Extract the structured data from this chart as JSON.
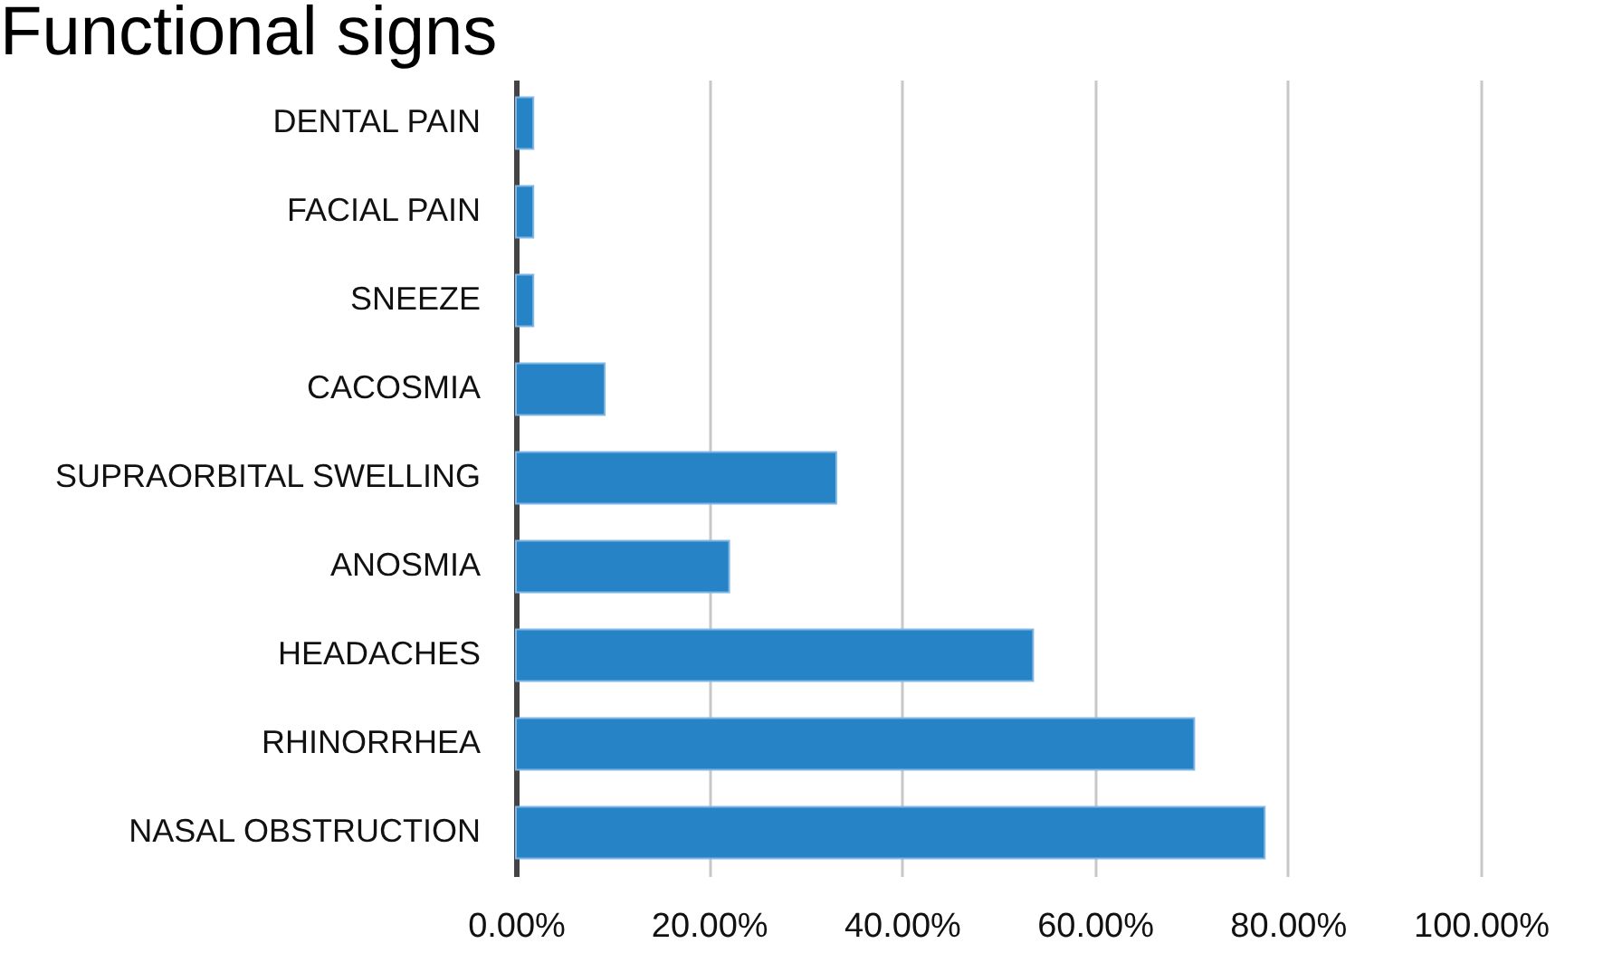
{
  "chart_data": {
    "type": "bar",
    "orientation": "horizontal",
    "title": "Functional signs",
    "categories": [
      "DENTAL PAIN",
      "FACIAL PAIN",
      "SNEEZE",
      "CACOSMIA",
      "SUPRAORBITAL SWELLING",
      "ANOSMIA",
      "HEADACHES",
      "RHINORRHEA",
      "NASAL OBSTRUCTION"
    ],
    "values": [
      1.8,
      1.8,
      1.8,
      9.2,
      33.2,
      22.1,
      53.6,
      70.3,
      77.6
    ],
    "color": "#2683c6",
    "xlim": [
      0,
      100
    ],
    "xticks": [
      {
        "value": 0,
        "label": "0.00%"
      },
      {
        "value": 20,
        "label": "20.00%"
      },
      {
        "value": 40,
        "label": "40.00%"
      },
      {
        "value": 60,
        "label": "60.00%"
      },
      {
        "value": 80,
        "label": "80.00%"
      },
      {
        "value": 100,
        "label": "100.00%"
      }
    ],
    "grid": "x"
  }
}
